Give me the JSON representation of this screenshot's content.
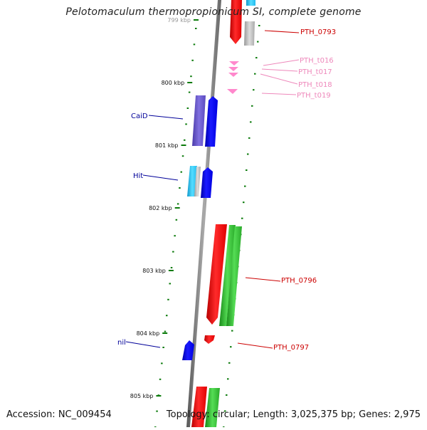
{
  "title": "Pelotomaculum thermopropionicum SI, complete genome",
  "footer": {
    "accession": "Accession: NC_009454",
    "summary": "Topology: circular; Length: 3,025,375 bp; Genes: 2,975"
  },
  "ticks": [
    {
      "label": "799 kbp"
    },
    {
      "label": "800 kbp"
    },
    {
      "label": "801 kbp"
    },
    {
      "label": "802 kbp"
    },
    {
      "label": "803 kbp"
    },
    {
      "label": "804 kbp"
    },
    {
      "label": "805 kbp"
    }
  ],
  "gene_labels": {
    "pth0793": "PTH_0793",
    "t016": "PTH_t016",
    "t017": "PTH_t017",
    "t018": "PTH_t018",
    "t019": "PTH_t019",
    "caid": "CaiD",
    "hit": "Hit",
    "pth0796": "PTH_0796",
    "nil": "nil",
    "pth0797": "PTH_0797"
  },
  "colors": {
    "backbone": "#808080",
    "tick_green": "#0a7a0a",
    "red": "#ff0000",
    "blue": "#0000ff",
    "green": "#2fbf2f",
    "purple": "#6a5acd",
    "cyan": "#22bbee",
    "pink": "#ff88cc",
    "gray": "#b8b8b8",
    "label_red": "#cc0000",
    "label_blue": "#000099",
    "label_pink": "#ee88bb"
  }
}
